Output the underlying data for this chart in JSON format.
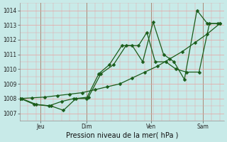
{
  "xlabel": "Pression niveau de la mer( hPa )",
  "ylim": [
    1006.5,
    1014.5
  ],
  "xlim": [
    0,
    9.8
  ],
  "yticks": [
    1007,
    1008,
    1009,
    1010,
    1011,
    1012,
    1013,
    1014
  ],
  "day_labels": [
    "Jeu",
    "Dim",
    "Ven",
    "Sam"
  ],
  "day_positions": [
    1.0,
    3.2,
    6.3,
    8.8
  ],
  "background_color": "#c8eae8",
  "grid_color": "#e8a0a0",
  "line_color": "#1a5c1a",
  "series1_x": [
    0.0,
    0.6,
    1.2,
    1.8,
    2.4,
    3.0,
    3.6,
    4.2,
    4.8,
    5.4,
    6.0,
    6.6,
    7.2,
    7.8,
    8.4,
    9.0,
    9.6
  ],
  "series1_y": [
    1008.0,
    1008.05,
    1008.1,
    1008.2,
    1008.3,
    1008.4,
    1008.6,
    1008.8,
    1009.0,
    1009.4,
    1009.8,
    1010.2,
    1010.7,
    1011.2,
    1011.8,
    1012.4,
    1013.1
  ],
  "series2_x": [
    0.05,
    0.7,
    1.4,
    2.0,
    2.6,
    3.2,
    3.8,
    4.3,
    4.9,
    5.4,
    5.9,
    6.4,
    6.9,
    7.4,
    7.9,
    8.5,
    9.0,
    9.5
  ],
  "series2_y": [
    1008.0,
    1007.6,
    1007.5,
    1007.8,
    1008.0,
    1008.0,
    1009.7,
    1010.3,
    1011.6,
    1011.6,
    1010.5,
    1013.2,
    1011.0,
    1010.5,
    1009.3,
    1014.0,
    1013.1,
    1013.1
  ],
  "series3_x": [
    0.1,
    0.8,
    1.5,
    2.1,
    2.7,
    3.3,
    3.9,
    4.5,
    5.1,
    5.7,
    6.1,
    6.5,
    7.0,
    7.5,
    8.0,
    8.6,
    9.1,
    9.6
  ],
  "series3_y": [
    1008.0,
    1007.6,
    1007.5,
    1007.2,
    1008.0,
    1008.1,
    1009.7,
    1010.3,
    1011.6,
    1011.6,
    1012.5,
    1010.5,
    1010.5,
    1010.0,
    1009.8,
    1009.8,
    1013.1,
    1013.1
  ],
  "marker_size": 2.5,
  "line_width": 0.9,
  "xlabel_fontsize": 7,
  "tick_fontsize": 5.5
}
